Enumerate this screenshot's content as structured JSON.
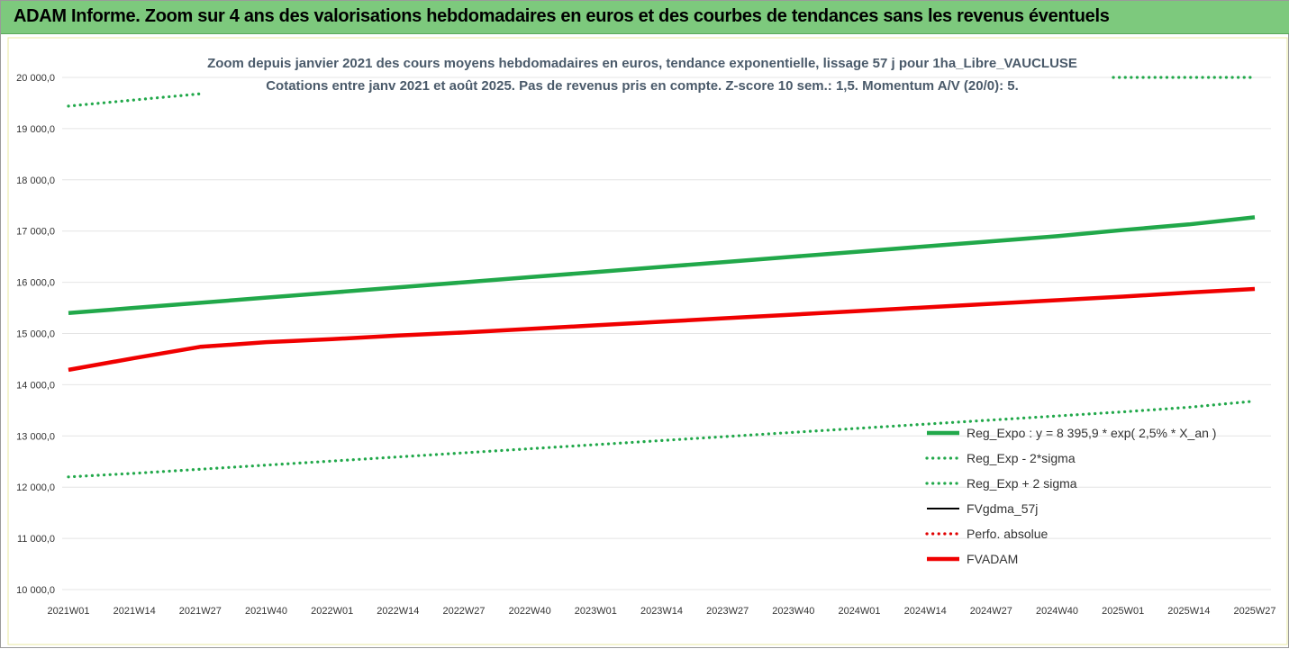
{
  "banner": {
    "title": "ADAM Informe. Zoom sur 4 ans des valorisations hebdomadaires en euros et des courbes de tendances sans les revenus éventuels"
  },
  "chart_data": {
    "type": "line",
    "title": "Zoom depuis janvier 2021 des cours moyens hebdomadaires en euros, tendance exponentielle, lissage 57 j pour 1ha_Libre_VAUCLUSE",
    "subtitle": "Cotations entre janv 2021 et août 2025.  Pas de revenus pris en compte. Z-score 10 sem.: 1,5. Momentum A/V (20/0): 5.",
    "xlabel": "",
    "ylabel": "",
    "ylim": [
      10000,
      20000
    ],
    "yticks": [
      "10 000,0",
      "11 000,0",
      "12 000,0",
      "13 000,0",
      "14 000,0",
      "15 000,0",
      "16 000,0",
      "17 000,0",
      "18 000,0",
      "19 000,0",
      "20 000,0"
    ],
    "ytick_values": [
      10000,
      11000,
      12000,
      13000,
      14000,
      15000,
      16000,
      17000,
      18000,
      19000,
      20000
    ],
    "x_categories": [
      "2021W01",
      "2021W14",
      "2021W27",
      "2021W40",
      "2022W01",
      "2022W14",
      "2022W27",
      "2022W40",
      "2023W01",
      "2023W14",
      "2023W27",
      "2023W40",
      "2024W01",
      "2024W14",
      "2024W27",
      "2024W40",
      "2025W01",
      "2025W14",
      "2025W27"
    ],
    "legend_position": "bottom-right",
    "grid": true,
    "series": [
      {
        "name": "Reg_Expo : y = 8 395,9 * exp( 2,5% *  X_an )",
        "style": "solid-thick",
        "color": "#21a84a",
        "values": [
          15400,
          15500,
          15600,
          15700,
          15800,
          15900,
          16000,
          16100,
          16200,
          16300,
          16400,
          16500,
          16600,
          16700,
          16800,
          16900,
          17020,
          17130,
          17270
        ]
      },
      {
        "name": "Reg_Exp - 2*sigma",
        "style": "dotted",
        "color": "#21a84a",
        "values": [
          12200,
          12270,
          12350,
          12430,
          12510,
          12590,
          12670,
          12750,
          12830,
          12910,
          12990,
          13070,
          13150,
          13230,
          13310,
          13390,
          13470,
          13560,
          13680
        ]
      },
      {
        "name": "Reg_Exp + 2 sigma",
        "style": "dotted",
        "color": "#21a84a",
        "values": [
          19440,
          19560,
          19680,
          19800,
          19920,
          20000,
          20000,
          20000,
          20000,
          20000,
          20000,
          20000,
          20000,
          20000,
          20000,
          20000,
          20000,
          20000,
          20000
        ]
      },
      {
        "name": "FVgdma_57j",
        "style": "solid-thin",
        "color": "#000000",
        "values": [
          14290,
          14520,
          14720,
          14820,
          14890,
          14950,
          15010,
          15080,
          15150,
          15220,
          15290,
          15360,
          15430,
          15500,
          15570,
          15640,
          15710,
          15790,
          15870
        ]
      },
      {
        "name": "Perfo. absolue",
        "style": "dotted",
        "color": "#e00000",
        "values": []
      },
      {
        "name": "FVADAM",
        "style": "solid-thick",
        "color": "#f00000",
        "values": [
          14290,
          14520,
          14740,
          14830,
          14890,
          14960,
          15020,
          15090,
          15160,
          15230,
          15300,
          15370,
          15440,
          15510,
          15580,
          15650,
          15720,
          15800,
          15870
        ]
      }
    ]
  }
}
